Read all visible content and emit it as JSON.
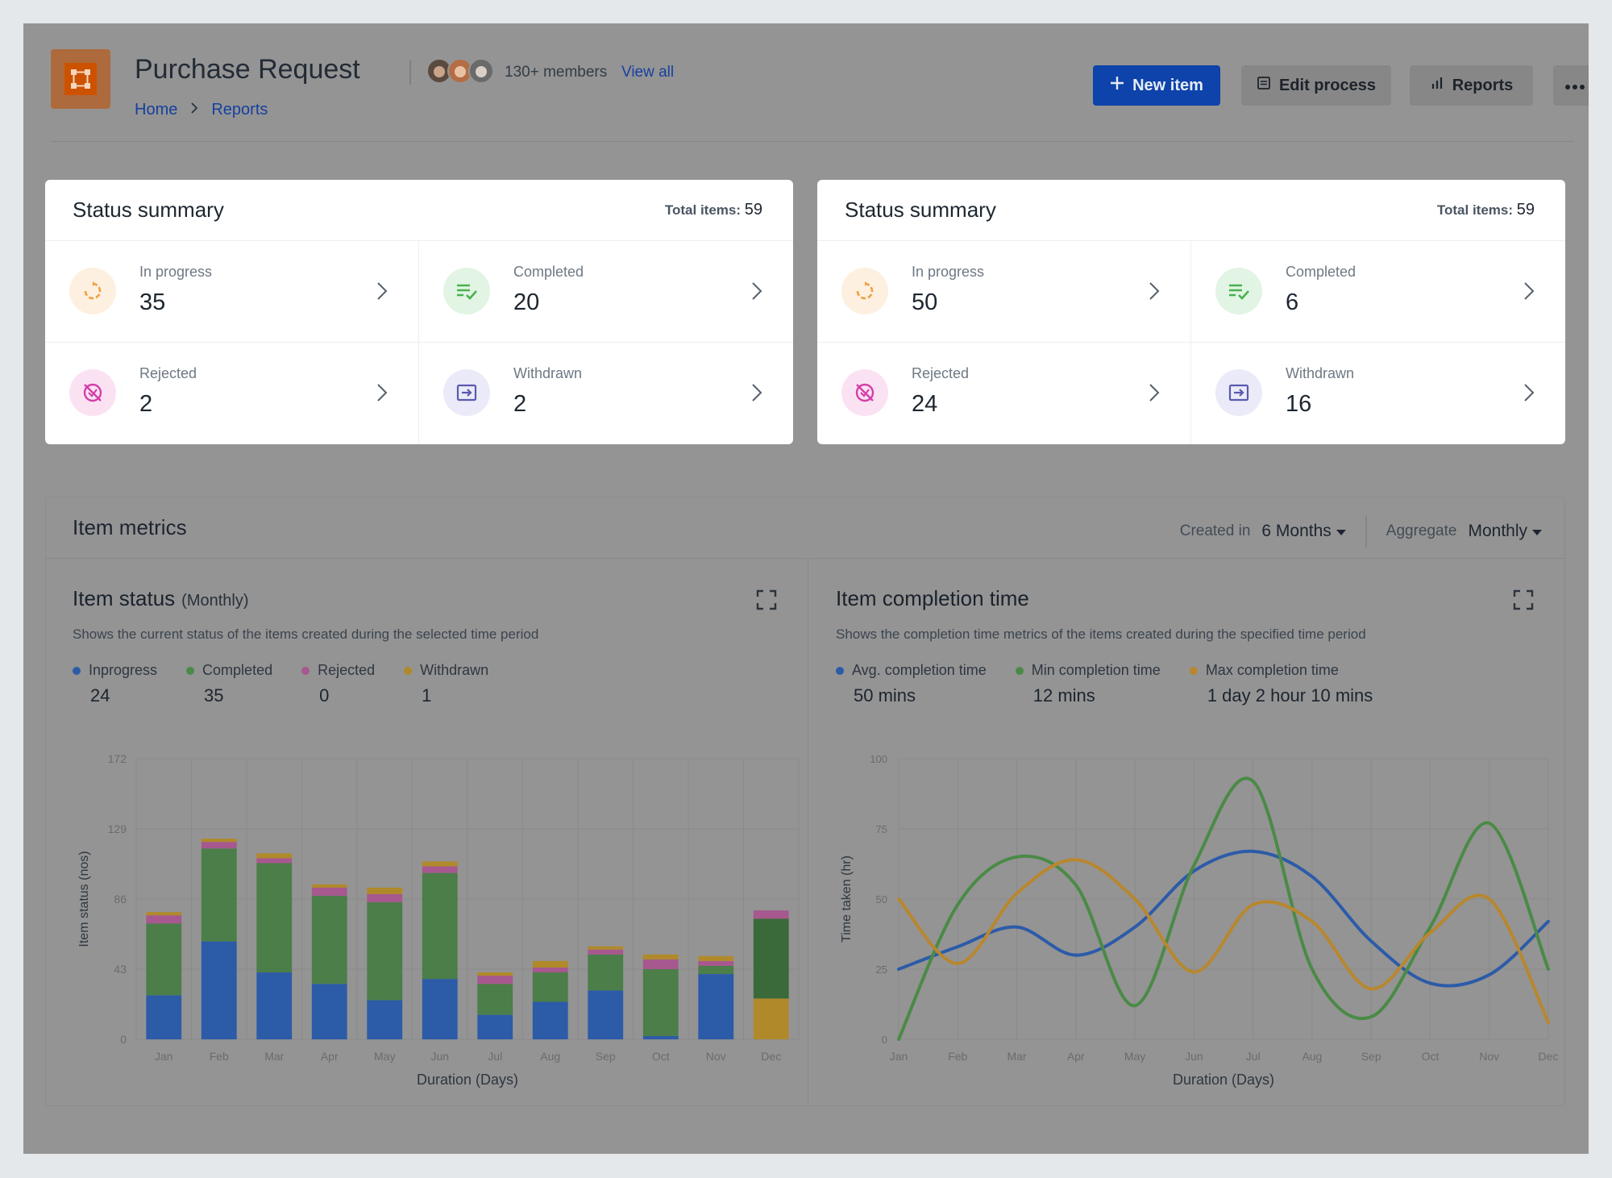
{
  "header": {
    "title": "Purchase Request",
    "members_text": "130+ members",
    "view_all": "View all",
    "breadcrumb": [
      "Home",
      "Reports"
    ],
    "buttons": {
      "new_item": "New item",
      "edit_process": "Edit process",
      "reports": "Reports"
    }
  },
  "summaries": [
    {
      "title": "Status summary",
      "total_label": "Total items:",
      "total_value": "59",
      "items": [
        {
          "label": "In progress",
          "value": "35",
          "icon": "refresh-icon"
        },
        {
          "label": "Completed",
          "value": "20",
          "icon": "list-check-icon"
        },
        {
          "label": "Rejected",
          "value": "2",
          "icon": "rejected-icon"
        },
        {
          "label": "Withdrawn",
          "value": "2",
          "icon": "withdraw-icon"
        }
      ]
    },
    {
      "title": "Status summary",
      "total_label": "Total items:",
      "total_value": "59",
      "items": [
        {
          "label": "In progress",
          "value": "50",
          "icon": "refresh-icon"
        },
        {
          "label": "Completed",
          "value": "6",
          "icon": "list-check-icon"
        },
        {
          "label": "Rejected",
          "value": "24",
          "icon": "rejected-icon"
        },
        {
          "label": "Withdrawn",
          "value": "16",
          "icon": "withdraw-icon"
        }
      ]
    }
  ],
  "metrics": {
    "title": "Item metrics",
    "created_in_label": "Created in",
    "created_in_value": "6 Months",
    "aggregate_label": "Aggregate",
    "aggregate_value": "Monthly"
  },
  "item_status": {
    "title": "Item status",
    "subtitle": "(Monthly)",
    "description": "Shows the current status of the items created during the selected time period",
    "legend": [
      {
        "name": "Inprogress",
        "value": "24"
      },
      {
        "name": "Completed",
        "value": "35"
      },
      {
        "name": "Rejected",
        "value": "0"
      },
      {
        "name": "Withdrawn",
        "value": "1"
      }
    ]
  },
  "completion_time": {
    "title": "Item completion time",
    "description": "Shows the completion time metrics of the items created during the specified time period",
    "legend": [
      {
        "name": "Avg. completion time",
        "value": "50 mins"
      },
      {
        "name": "Min completion time",
        "value": "12 mins"
      },
      {
        "name": "Max completion time",
        "value": "1 day 2 hour 10 mins"
      }
    ]
  },
  "colors": {
    "inprogress": "#2c5ba8",
    "completed": "#4b7e48",
    "rejected": "#a6588f",
    "withdrawn": "#b08a2a",
    "avg": "#2c5ba8",
    "min": "#4a8a46",
    "max": "#b8872e",
    "dec_completed": "#3a6a3a"
  },
  "chart_data": [
    {
      "type": "bar",
      "stacked": true,
      "categories": [
        "Jan",
        "Feb",
        "Mar",
        "Apr",
        "May",
        "Jun",
        "Jul",
        "Aug",
        "Sep",
        "Oct",
        "Nov",
        "Dec"
      ],
      "series": [
        {
          "name": "Inprogress",
          "values": [
            27,
            60,
            41,
            34,
            24,
            37,
            15,
            23,
            30,
            2,
            40,
            0
          ]
        },
        {
          "name": "Completed",
          "values": [
            44,
            57,
            67,
            54,
            60,
            65,
            19,
            18,
            22,
            41,
            5,
            49
          ]
        },
        {
          "name": "Rejected",
          "values": [
            5,
            4,
            3,
            5,
            5,
            4,
            5,
            3,
            3,
            6,
            3,
            5
          ]
        },
        {
          "name": "Withdrawn",
          "values": [
            2,
            2,
            3,
            2,
            4,
            3,
            2,
            4,
            2,
            3,
            3,
            25
          ]
        }
      ],
      "xlabel": "Duration (Days)",
      "ylabel": "Item status (nos)",
      "ylim": [
        0,
        172
      ],
      "yticks": [
        0,
        43,
        86,
        129,
        172
      ],
      "grid": true
    },
    {
      "type": "line",
      "categories": [
        "Jan",
        "Feb",
        "Mar",
        "Apr",
        "May",
        "Jun",
        "Jul",
        "Aug",
        "Sep",
        "Oct",
        "Nov",
        "Dec"
      ],
      "series": [
        {
          "name": "Avg. completion time",
          "values": [
            25,
            33,
            40,
            30,
            40,
            60,
            67,
            58,
            35,
            20,
            23,
            42
          ]
        },
        {
          "name": "Min completion time",
          "values": [
            0,
            48,
            65,
            55,
            12,
            62,
            92,
            25,
            8,
            40,
            77,
            25
          ]
        },
        {
          "name": "Max completion time",
          "values": [
            50,
            27,
            52,
            64,
            50,
            24,
            48,
            42,
            18,
            38,
            50,
            6
          ]
        }
      ],
      "xlabel": "Duration (Days)",
      "ylabel": "Time taken (hr)",
      "ylim": [
        0,
        100
      ],
      "yticks": [
        0,
        25,
        50,
        75,
        100
      ],
      "grid": true
    }
  ]
}
